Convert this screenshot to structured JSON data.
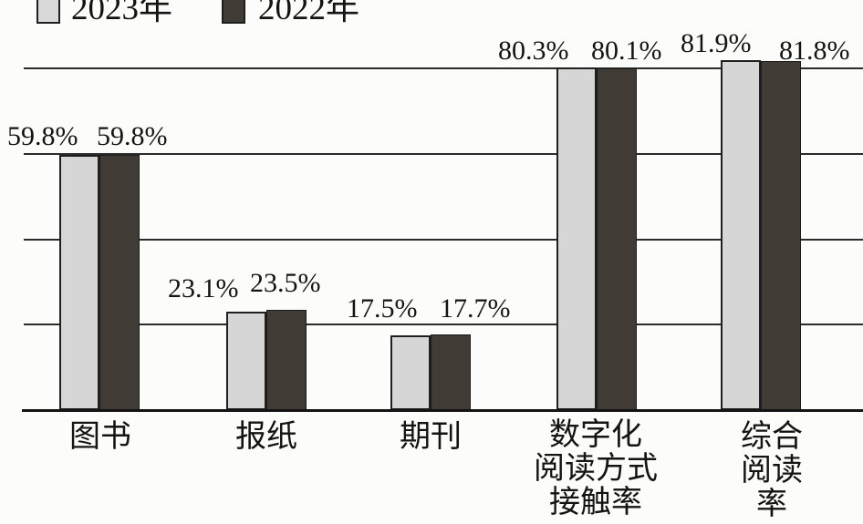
{
  "chart_data": {
    "type": "bar",
    "title": "",
    "xlabel": "",
    "ylabel": "",
    "unit": "%",
    "categories": [
      "图书",
      "报纸",
      "期刊",
      "数字化\n阅读方式\n接触率",
      "综合阅读率"
    ],
    "series": [
      {
        "name": "2023年",
        "values": [
          59.8,
          23.1,
          17.5,
          80.3,
          81.9
        ],
        "color": "#d6d6d6"
      },
      {
        "name": "2022年",
        "values": [
          59.8,
          23.5,
          17.7,
          80.1,
          81.8
        ],
        "color": "#413b36"
      }
    ],
    "value_labels": [
      [
        "59.8%",
        "59.8%"
      ],
      [
        "23.1%",
        "23.5%"
      ],
      [
        "17.5%",
        "17.7%"
      ],
      [
        "80.3%",
        "80.1%"
      ],
      [
        "81.9%",
        "81.8%"
      ]
    ],
    "ylim": [
      0,
      96
    ],
    "gridlines_pct": [
      0,
      20,
      40,
      60,
      80
    ],
    "grid": true,
    "legend_position": "top-left"
  },
  "legend": {
    "items": [
      {
        "label": "2023年",
        "swatch": "light-gray-square"
      },
      {
        "label": "2022年",
        "swatch": "dark-gray-square"
      }
    ]
  },
  "colors": {
    "background": "#fcfcfb",
    "grid_line": "#2b2b2b",
    "axis_line": "#141414",
    "text": "#141414",
    "bar_2023": "#d6d6d6",
    "bar_2022": "#413b36",
    "bar_border": "#1f1f1f"
  }
}
